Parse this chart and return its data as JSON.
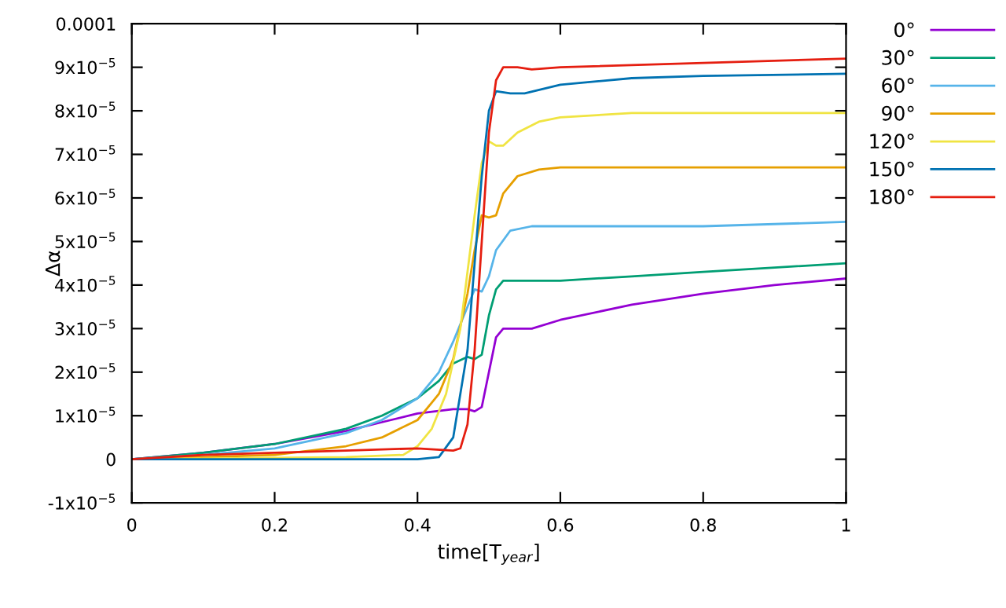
{
  "chart_data": {
    "type": "line",
    "xlabel": "time[T$_{year}$]",
    "ylabel": "Δα",
    "xlim": [
      0,
      1
    ],
    "xticks": [
      0,
      0.2,
      0.4,
      0.6,
      0.8,
      1
    ],
    "ylim": [
      -1e-05,
      0.0001
    ],
    "yticks": [
      {
        "value": -1e-05,
        "label": "-1x10$^{−5}$"
      },
      0,
      {
        "value": 1e-05,
        "label": "1x10$^{−5}$"
      },
      {
        "value": 2e-05,
        "label": "2x10$^{−5}$"
      },
      {
        "value": 3e-05,
        "label": "3x10$^{−5}$"
      },
      {
        "value": 4e-05,
        "label": "4x10$^{−5}$"
      },
      {
        "value": 5e-05,
        "label": "5x10$^{−5}$"
      },
      {
        "value": 6e-05,
        "label": "6x10$^{−5}$"
      },
      {
        "value": 7e-05,
        "label": "7x10$^{−5}$"
      },
      {
        "value": 8e-05,
        "label": "8x10$^{−5}$"
      },
      {
        "value": 9e-05,
        "label": "9x10$^{−5}$"
      },
      0.0001
    ],
    "grid": false,
    "legend": "top right",
    "marker": "none",
    "line_style": "solid",
    "series": [
      {
        "name": "0°",
        "color": "#9400d3",
        "x": [
          0,
          0.1,
          0.2,
          0.3,
          0.35,
          0.4,
          0.45,
          0.47,
          0.48,
          0.49,
          0.5,
          0.51,
          0.52,
          0.54,
          0.56,
          0.6,
          0.7,
          0.8,
          0.9,
          1.0
        ],
        "values": [
          0,
          1.5e-06,
          3.5e-06,
          6.5e-06,
          8.5e-06,
          1.05e-05,
          1.15e-05,
          1.15e-05,
          1.1e-05,
          1.2e-05,
          2e-05,
          2.8e-05,
          3e-05,
          3e-05,
          3e-05,
          3.2e-05,
          3.55e-05,
          3.8e-05,
          4e-05,
          4.15e-05
        ]
      },
      {
        "name": "30°",
        "color": "#009e73",
        "x": [
          0,
          0.1,
          0.2,
          0.3,
          0.35,
          0.4,
          0.43,
          0.45,
          0.47,
          0.48,
          0.49,
          0.5,
          0.51,
          0.52,
          0.55,
          0.6,
          0.7,
          0.8,
          0.9,
          1.0
        ],
        "values": [
          0,
          1.5e-06,
          3.5e-06,
          7e-06,
          1e-05,
          1.4e-05,
          1.8e-05,
          2.2e-05,
          2.35e-05,
          2.3e-05,
          2.4e-05,
          3.3e-05,
          3.9e-05,
          4.1e-05,
          4.1e-05,
          4.1e-05,
          4.2e-05,
          4.3e-05,
          4.4e-05,
          4.5e-05
        ]
      },
      {
        "name": "60°",
        "color": "#56b4e9",
        "x": [
          0,
          0.1,
          0.2,
          0.3,
          0.35,
          0.4,
          0.43,
          0.45,
          0.47,
          0.48,
          0.49,
          0.5,
          0.51,
          0.53,
          0.56,
          0.6,
          0.8,
          1.0
        ],
        "values": [
          0,
          1e-06,
          2.5e-06,
          6e-06,
          9e-06,
          1.4e-05,
          2e-05,
          2.7e-05,
          3.5e-05,
          3.9e-05,
          3.85e-05,
          4.2e-05,
          4.8e-05,
          5.25e-05,
          5.35e-05,
          5.35e-05,
          5.35e-05,
          5.45e-05
        ]
      },
      {
        "name": "90°",
        "color": "#e69f00",
        "x": [
          0,
          0.2,
          0.3,
          0.35,
          0.4,
          0.43,
          0.45,
          0.47,
          0.48,
          0.49,
          0.5,
          0.51,
          0.52,
          0.54,
          0.57,
          0.6,
          0.8,
          1.0
        ],
        "values": [
          0,
          1e-06,
          3e-06,
          5e-06,
          9e-06,
          1.5e-05,
          2.3e-05,
          3.8e-05,
          4.8e-05,
          5.6e-05,
          5.55e-05,
          5.6e-05,
          6.1e-05,
          6.5e-05,
          6.65e-05,
          6.7e-05,
          6.7e-05,
          6.7e-05
        ]
      },
      {
        "name": "120°",
        "color": "#f0e442",
        "x": [
          0,
          0.3,
          0.38,
          0.4,
          0.42,
          0.44,
          0.46,
          0.47,
          0.48,
          0.49,
          0.5,
          0.51,
          0.52,
          0.54,
          0.57,
          0.6,
          0.7,
          1.0
        ],
        "values": [
          0,
          5e-07,
          1e-06,
          3e-06,
          7e-06,
          1.5e-05,
          3e-05,
          4.3e-05,
          5.6e-05,
          6.8e-05,
          7.3e-05,
          7.2e-05,
          7.2e-05,
          7.5e-05,
          7.75e-05,
          7.85e-05,
          7.95e-05,
          7.95e-05
        ]
      },
      {
        "name": "150°",
        "color": "#0072b2",
        "x": [
          0,
          0.3,
          0.4,
          0.43,
          0.45,
          0.47,
          0.48,
          0.49,
          0.5,
          0.51,
          0.53,
          0.55,
          0.6,
          0.7,
          0.8,
          1.0
        ],
        "values": [
          0,
          0,
          0,
          5e-07,
          5e-06,
          2.5e-05,
          4.5e-05,
          6.5e-05,
          8e-05,
          8.45e-05,
          8.4e-05,
          8.4e-05,
          8.6e-05,
          8.75e-05,
          8.8e-05,
          8.85e-05
        ]
      },
      {
        "name": "180°",
        "color": "#e51e10",
        "x": [
          0,
          0.1,
          0.2,
          0.3,
          0.4,
          0.45,
          0.46,
          0.47,
          0.48,
          0.49,
          0.5,
          0.51,
          0.52,
          0.54,
          0.56,
          0.6,
          0.8,
          1.0
        ],
        "values": [
          0,
          1e-06,
          1.5e-06,
          2e-06,
          2.5e-06,
          2e-06,
          2.5e-06,
          8e-06,
          2.5e-05,
          5e-05,
          7.5e-05,
          8.7e-05,
          9e-05,
          9e-05,
          8.95e-05,
          9e-05,
          9.1e-05,
          9.2e-05
        ]
      }
    ]
  }
}
